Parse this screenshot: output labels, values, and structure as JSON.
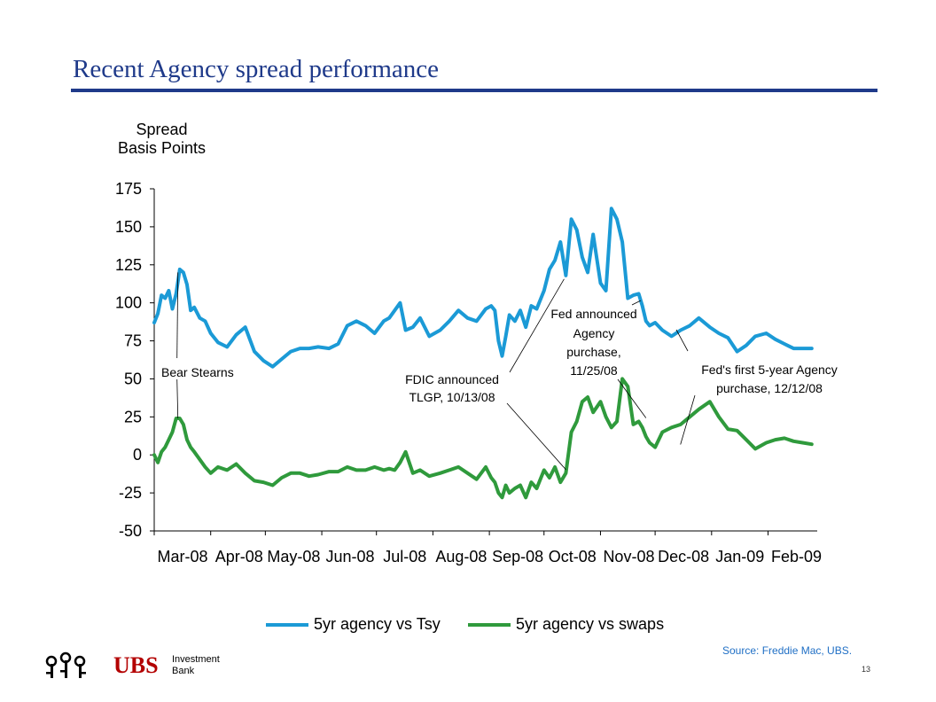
{
  "slide": {
    "title": "Recent Agency spread performance",
    "source": "Source:  Freddie Mac, UBS.",
    "page_number": "13"
  },
  "logo": {
    "brand": "UBS",
    "line1": "Investment",
    "line2": "Bank"
  },
  "colors": {
    "title": "#1f3a8a",
    "tsy_series": "#1b9ad6",
    "swaps_series": "#2f9a3c",
    "source_text": "#1f6fc5",
    "logo_red": "#b30000"
  },
  "chart_data": {
    "type": "line",
    "ylabel_lines": [
      "Spread",
      "Basis Points"
    ],
    "xlabel": "",
    "ylim": [
      -50,
      175
    ],
    "yticks": [
      175,
      150,
      125,
      100,
      75,
      50,
      25,
      0,
      -25,
      -50
    ],
    "xlim": [
      "2008-03-01",
      "2009-02-28"
    ],
    "xticks": [
      {
        "label": "Mar-08",
        "date": "2008-03-01"
      },
      {
        "label": "Apr-08",
        "date": "2008-04-01"
      },
      {
        "label": "May-08",
        "date": "2008-05-01"
      },
      {
        "label": "Jun-08",
        "date": "2008-06-01"
      },
      {
        "label": "Jul-08",
        "date": "2008-07-01"
      },
      {
        "label": "Aug-08",
        "date": "2008-08-01"
      },
      {
        "label": "Sep-08",
        "date": "2008-09-01"
      },
      {
        "label": "Oct-08",
        "date": "2008-10-01"
      },
      {
        "label": "Nov-08",
        "date": "2008-11-01"
      },
      {
        "label": "Dec-08",
        "date": "2008-12-01"
      },
      {
        "label": "Jan-09",
        "date": "2009-01-01"
      },
      {
        "label": "Feb-09",
        "date": "2009-02-01"
      }
    ],
    "grid": false,
    "legend_position": "bottom",
    "series": [
      {
        "name": "5yr agency vs Tsy",
        "x": [
          "2008-03-01",
          "2008-03-03",
          "2008-03-05",
          "2008-03-07",
          "2008-03-09",
          "2008-03-11",
          "2008-03-13",
          "2008-03-15",
          "2008-03-17",
          "2008-03-19",
          "2008-03-21",
          "2008-03-23",
          "2008-03-26",
          "2008-03-29",
          "2008-04-01",
          "2008-04-05",
          "2008-04-10",
          "2008-04-15",
          "2008-04-20",
          "2008-04-25",
          "2008-04-30",
          "2008-05-05",
          "2008-05-10",
          "2008-05-15",
          "2008-05-20",
          "2008-05-25",
          "2008-05-30",
          "2008-06-05",
          "2008-06-10",
          "2008-06-15",
          "2008-06-20",
          "2008-06-25",
          "2008-06-30",
          "2008-07-05",
          "2008-07-08",
          "2008-07-11",
          "2008-07-14",
          "2008-07-17",
          "2008-07-21",
          "2008-07-25",
          "2008-07-30",
          "2008-08-05",
          "2008-08-10",
          "2008-08-15",
          "2008-08-20",
          "2008-08-25",
          "2008-08-30",
          "2008-09-02",
          "2008-09-04",
          "2008-09-06",
          "2008-09-08",
          "2008-09-10",
          "2008-09-12",
          "2008-09-15",
          "2008-09-18",
          "2008-09-21",
          "2008-09-24",
          "2008-09-27",
          "2008-10-01",
          "2008-10-04",
          "2008-10-07",
          "2008-10-10",
          "2008-10-13",
          "2008-10-16",
          "2008-10-19",
          "2008-10-22",
          "2008-10-25",
          "2008-10-28",
          "2008-11-01",
          "2008-11-04",
          "2008-11-07",
          "2008-11-10",
          "2008-11-13",
          "2008-11-16",
          "2008-11-19",
          "2008-11-22",
          "2008-11-24",
          "2008-11-26",
          "2008-11-28",
          "2008-12-01",
          "2008-12-05",
          "2008-12-10",
          "2008-12-15",
          "2008-12-20",
          "2008-12-25",
          "2008-12-31",
          "2009-01-05",
          "2009-01-10",
          "2009-01-15",
          "2009-01-20",
          "2009-01-25",
          "2009-01-31",
          "2009-02-05",
          "2009-02-10",
          "2009-02-15",
          "2009-02-20",
          "2009-02-25"
        ],
        "y": [
          87,
          93,
          105,
          103,
          108,
          96,
          106,
          122,
          120,
          112,
          95,
          97,
          90,
          88,
          80,
          74,
          71,
          79,
          84,
          68,
          62,
          58,
          63,
          68,
          70,
          70,
          71,
          70,
          73,
          85,
          88,
          85,
          80,
          88,
          90,
          95,
          100,
          82,
          84,
          90,
          78,
          82,
          88,
          95,
          90,
          88,
          96,
          98,
          95,
          75,
          65,
          78,
          92,
          88,
          95,
          84,
          98,
          96,
          108,
          122,
          128,
          140,
          118,
          155,
          148,
          130,
          120,
          145,
          113,
          108,
          162,
          155,
          140,
          103,
          105,
          106,
          98,
          88,
          85,
          87,
          82,
          78,
          82,
          85,
          90,
          84,
          80,
          77,
          68,
          72,
          78,
          80,
          76,
          73,
          70,
          70,
          70
        ],
        "color": "#1b9ad6"
      },
      {
        "name": "5yr agency vs swaps",
        "x": [
          "2008-03-01",
          "2008-03-03",
          "2008-03-05",
          "2008-03-07",
          "2008-03-09",
          "2008-03-11",
          "2008-03-13",
          "2008-03-15",
          "2008-03-17",
          "2008-03-19",
          "2008-03-21",
          "2008-03-23",
          "2008-03-26",
          "2008-03-29",
          "2008-04-01",
          "2008-04-05",
          "2008-04-10",
          "2008-04-15",
          "2008-04-20",
          "2008-04-25",
          "2008-04-30",
          "2008-05-05",
          "2008-05-10",
          "2008-05-15",
          "2008-05-20",
          "2008-05-25",
          "2008-05-30",
          "2008-06-05",
          "2008-06-10",
          "2008-06-15",
          "2008-06-20",
          "2008-06-25",
          "2008-06-30",
          "2008-07-05",
          "2008-07-08",
          "2008-07-11",
          "2008-07-14",
          "2008-07-17",
          "2008-07-21",
          "2008-07-25",
          "2008-07-30",
          "2008-08-05",
          "2008-08-10",
          "2008-08-15",
          "2008-08-20",
          "2008-08-25",
          "2008-08-30",
          "2008-09-02",
          "2008-09-04",
          "2008-09-06",
          "2008-09-08",
          "2008-09-10",
          "2008-09-12",
          "2008-09-15",
          "2008-09-18",
          "2008-09-21",
          "2008-09-24",
          "2008-09-27",
          "2008-10-01",
          "2008-10-04",
          "2008-10-07",
          "2008-10-10",
          "2008-10-13",
          "2008-10-16",
          "2008-10-19",
          "2008-10-22",
          "2008-10-25",
          "2008-10-28",
          "2008-11-01",
          "2008-11-04",
          "2008-11-07",
          "2008-11-10",
          "2008-11-13",
          "2008-11-16",
          "2008-11-19",
          "2008-11-22",
          "2008-11-24",
          "2008-11-26",
          "2008-11-28",
          "2008-12-01",
          "2008-12-05",
          "2008-12-10",
          "2008-12-15",
          "2008-12-20",
          "2008-12-25",
          "2008-12-31",
          "2009-01-05",
          "2009-01-10",
          "2009-01-15",
          "2009-01-20",
          "2009-01-25",
          "2009-01-31",
          "2009-02-05",
          "2009-02-10",
          "2009-02-15",
          "2009-02-20",
          "2009-02-25"
        ],
        "y": [
          0,
          -5,
          2,
          5,
          10,
          15,
          24,
          24,
          20,
          10,
          5,
          2,
          -3,
          -8,
          -12,
          -8,
          -10,
          -6,
          -12,
          -17,
          -18,
          -20,
          -15,
          -12,
          -12,
          -14,
          -13,
          -11,
          -11,
          -8,
          -10,
          -10,
          -8,
          -10,
          -9,
          -10,
          -5,
          2,
          -12,
          -10,
          -14,
          -12,
          -10,
          -8,
          -12,
          -16,
          -8,
          -15,
          -18,
          -25,
          -28,
          -20,
          -25,
          -22,
          -20,
          -28,
          -18,
          -22,
          -10,
          -15,
          -8,
          -18,
          -12,
          15,
          22,
          35,
          38,
          28,
          35,
          25,
          18,
          22,
          50,
          45,
          20,
          22,
          18,
          12,
          8,
          5,
          15,
          18,
          20,
          25,
          30,
          35,
          25,
          17,
          16,
          10,
          4,
          8,
          10,
          11,
          9,
          8,
          7
        ],
        "color": "#2f9a3c"
      }
    ],
    "annotations": [
      {
        "text": "Bear Stearns",
        "date": "2008-03-14"
      },
      {
        "text_lines": [
          "FDIC announced",
          "TLGP, 10/13/08"
        ],
        "date": "2008-10-13"
      },
      {
        "text_lines": [
          "Fed announced",
          "Agency",
          "purchase,",
          "11/25/08"
        ],
        "date": "2008-11-25"
      },
      {
        "text_lines": [
          "Fed's first 5-year Agency",
          "purchase, 12/12/08"
        ],
        "date": "2008-12-12"
      }
    ]
  }
}
